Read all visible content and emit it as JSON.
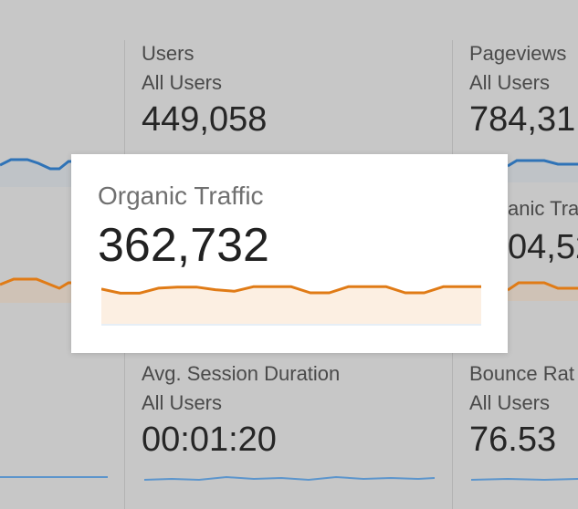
{
  "metrics": {
    "users": {
      "label": "Users",
      "segment": "All Users",
      "value": "449,058"
    },
    "pageviews": {
      "label": "Pageviews",
      "segment": "All Users",
      "value": "784,31"
    },
    "organic_partial": {
      "label": "anic Tra",
      "value": "04,52"
    },
    "avg_session": {
      "label": "Avg. Session Duration",
      "segment": "All Users",
      "value": "00:01:20"
    },
    "bounce_rate": {
      "label": "Bounce Rat",
      "segment": "All Users",
      "value": "76.53"
    }
  },
  "focus_card": {
    "title": "Organic Traffic",
    "value": "362,732"
  },
  "chart_data": {
    "type": "area",
    "title": "",
    "series": [
      {
        "values": [
          0.91,
          0.8,
          0.8,
          0.93,
          0.96,
          0.96,
          0.89,
          0.85,
          0.97,
          0.97,
          0.97,
          0.81,
          0.81,
          0.97,
          0.97,
          0.97,
          0.81,
          0.81,
          0.97,
          0.97,
          0.97
        ]
      }
    ],
    "colors": {
      "line": "#e07b16",
      "fill": "#fcefe2",
      "blue": "#2f73b7"
    }
  }
}
